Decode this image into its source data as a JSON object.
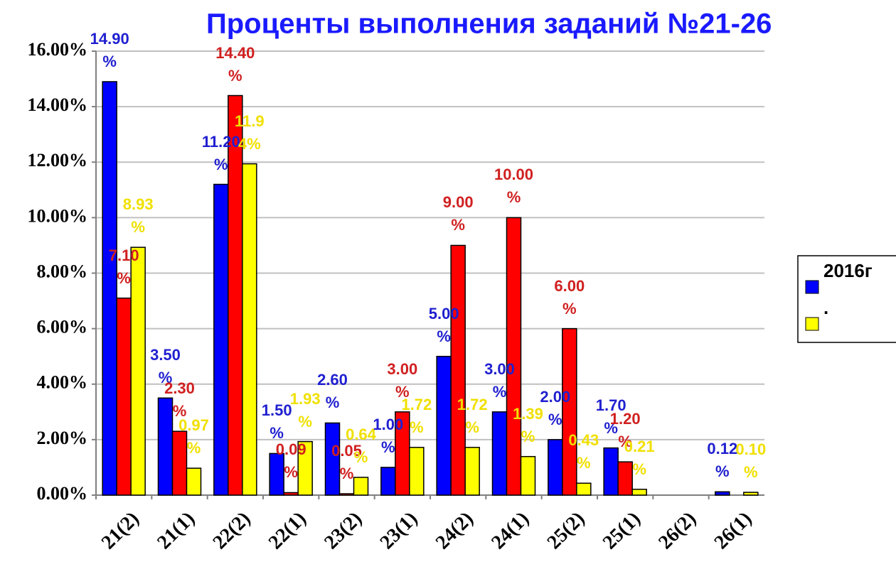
{
  "chart_data": {
    "type": "bar",
    "title": "Проценты выполнения заданий №21-26",
    "categories": [
      "21(2)",
      "21(1)",
      "22(2)",
      "22(1)",
      "23(2)",
      "23(1)",
      "24(2)",
      "24(1)",
      "25(2)",
      "25(1)",
      "26(2)",
      "26(1)"
    ],
    "series": [
      {
        "name": "2016г",
        "color": "#0000ff",
        "values": [
          14.9,
          3.5,
          11.2,
          1.5,
          2.6,
          1.0,
          5.0,
          3.0,
          2.0,
          1.7,
          0,
          0.12
        ],
        "value_labels": [
          "14.90 %",
          "3.50 %",
          "11.20 %",
          "1.50 %",
          "2.60 %",
          "1.00 %",
          "5.00 %",
          "3.00 %",
          "2.00 %",
          "1.70 %",
          null,
          "0.12 %"
        ]
      },
      {
        "name": null,
        "color": "#ff0000",
        "values": [
          7.1,
          2.3,
          14.4,
          0.09,
          0.05,
          3.0,
          9.0,
          10.0,
          6.0,
          1.2,
          0,
          0
        ],
        "value_labels": [
          "7.10 %",
          "2.30 %",
          "14.40 %",
          "0.09 %",
          "0.05 %",
          "3.00 %",
          "9.00 %",
          "10.00 %",
          "6.00 %",
          "1.20 %",
          null,
          null
        ]
      },
      {
        "name": ".",
        "color": "#ffff00",
        "values": [
          8.93,
          0.97,
          11.94,
          1.93,
          0.64,
          1.72,
          1.72,
          1.39,
          0.43,
          0.21,
          0,
          0.1
        ],
        "value_labels": [
          "8.93 %",
          "0.97 %",
          "11.9 4%",
          "1.93 %",
          "0.64 %",
          "1.72 %",
          "1.72 %",
          "1.39 %",
          "0.43 %",
          "0.21 %",
          null,
          "0.10 %"
        ]
      }
    ],
    "ylim": [
      0,
      16
    ],
    "yticks": [
      {
        "value": 0,
        "label": "0.00%"
      },
      {
        "value": 2,
        "label": "2.00%"
      },
      {
        "value": 4,
        "label": "4.00%"
      },
      {
        "value": 6,
        "label": "6.00%"
      },
      {
        "value": 8,
        "label": "8.00%"
      },
      {
        "value": 10,
        "label": "10.00%"
      },
      {
        "value": 12,
        "label": "12.00%"
      },
      {
        "value": 14,
        "label": "14.00%"
      },
      {
        "value": 16,
        "label": "16.00%"
      }
    ],
    "grid": true,
    "legend": "right"
  }
}
